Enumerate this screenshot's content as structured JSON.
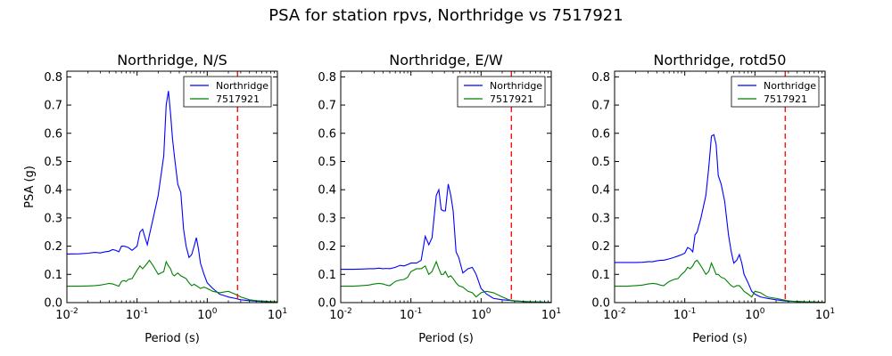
{
  "figure": {
    "title": "PSA for station rpvs, Northridge vs 7517921"
  },
  "chart_data": [
    {
      "type": "line",
      "title": "Northridge, N/S",
      "xlabel": "Period (s)",
      "ylabel": "PSA (g)",
      "xscale": "log",
      "xlim": [
        0.01,
        10
      ],
      "ylim": [
        0,
        0.82
      ],
      "xticks": [
        0.01,
        0.1,
        1,
        10
      ],
      "xtick_labels": [
        [
          "10",
          "-2"
        ],
        [
          "10",
          "-1"
        ],
        [
          "10",
          "0"
        ],
        [
          "10",
          "1"
        ]
      ],
      "yticks": [
        0,
        0.1,
        0.2,
        0.3,
        0.4,
        0.5,
        0.6,
        0.7,
        0.8
      ],
      "ytick_labels": [
        "0.0",
        "0.1",
        "0.2",
        "0.3",
        "0.4",
        "0.5",
        "0.6",
        "0.7",
        "0.8"
      ],
      "legend_position": "upper-right",
      "vline": {
        "x": 2.7,
        "color": "#ff0000",
        "style": "dashed"
      },
      "series": [
        {
          "name": "Northridge",
          "color": "#0000ff",
          "x": [
            0.01,
            0.015,
            0.02,
            0.025,
            0.03,
            0.035,
            0.04,
            0.045,
            0.05,
            0.055,
            0.06,
            0.065,
            0.07,
            0.075,
            0.085,
            0.1,
            0.11,
            0.12,
            0.13,
            0.14,
            0.15,
            0.17,
            0.2,
            0.24,
            0.26,
            0.28,
            0.3,
            0.32,
            0.34,
            0.38,
            0.42,
            0.46,
            0.5,
            0.55,
            0.6,
            0.65,
            0.7,
            0.75,
            0.8,
            0.9,
            1.0,
            1.2,
            1.5,
            2.0,
            2.5,
            3.0,
            4.0,
            5.0,
            7.5,
            10.0
          ],
          "y": [
            0.172,
            0.173,
            0.175,
            0.178,
            0.176,
            0.18,
            0.182,
            0.188,
            0.185,
            0.18,
            0.2,
            0.2,
            0.198,
            0.195,
            0.185,
            0.2,
            0.25,
            0.26,
            0.23,
            0.205,
            0.24,
            0.3,
            0.38,
            0.52,
            0.7,
            0.75,
            0.67,
            0.58,
            0.52,
            0.42,
            0.39,
            0.26,
            0.2,
            0.16,
            0.17,
            0.2,
            0.23,
            0.19,
            0.14,
            0.1,
            0.07,
            0.05,
            0.03,
            0.02,
            0.015,
            0.01,
            0.007,
            0.005,
            0.003,
            0.002
          ]
        },
        {
          "name": "7517921",
          "color": "#008000",
          "x": [
            0.01,
            0.015,
            0.02,
            0.025,
            0.03,
            0.035,
            0.04,
            0.045,
            0.05,
            0.055,
            0.06,
            0.065,
            0.07,
            0.075,
            0.085,
            0.1,
            0.11,
            0.12,
            0.13,
            0.14,
            0.15,
            0.17,
            0.2,
            0.24,
            0.26,
            0.28,
            0.3,
            0.32,
            0.34,
            0.38,
            0.42,
            0.46,
            0.5,
            0.55,
            0.6,
            0.65,
            0.7,
            0.75,
            0.8,
            0.9,
            1.0,
            1.2,
            1.5,
            2.0,
            2.5,
            3.0,
            4.0,
            5.0,
            7.5,
            10.0
          ],
          "y": [
            0.058,
            0.058,
            0.059,
            0.06,
            0.062,
            0.065,
            0.068,
            0.066,
            0.062,
            0.058,
            0.075,
            0.078,
            0.075,
            0.082,
            0.085,
            0.115,
            0.13,
            0.12,
            0.13,
            0.14,
            0.15,
            0.13,
            0.1,
            0.11,
            0.145,
            0.13,
            0.12,
            0.1,
            0.095,
            0.105,
            0.095,
            0.09,
            0.085,
            0.07,
            0.06,
            0.065,
            0.06,
            0.055,
            0.05,
            0.055,
            0.05,
            0.04,
            0.035,
            0.04,
            0.03,
            0.02,
            0.01,
            0.007,
            0.004,
            0.003
          ]
        }
      ]
    },
    {
      "type": "line",
      "title": "Northridge, E/W",
      "xlabel": "Period (s)",
      "ylabel": "",
      "xscale": "log",
      "xlim": [
        0.01,
        10
      ],
      "ylim": [
        0,
        0.82
      ],
      "xticks": [
        0.01,
        0.1,
        1,
        10
      ],
      "xtick_labels": [
        [
          "10",
          "-2"
        ],
        [
          "10",
          "-1"
        ],
        [
          "10",
          "0"
        ],
        [
          "10",
          "1"
        ]
      ],
      "yticks": [
        0,
        0.1,
        0.2,
        0.3,
        0.4,
        0.5,
        0.6,
        0.7,
        0.8
      ],
      "ytick_labels": [
        "0.0",
        "0.1",
        "0.2",
        "0.3",
        "0.4",
        "0.5",
        "0.6",
        "0.7",
        "0.8"
      ],
      "legend_position": "upper-right",
      "vline": {
        "x": 2.7,
        "color": "#ff0000",
        "style": "dashed"
      },
      "series": [
        {
          "name": "Northridge",
          "color": "#0000ff",
          "x": [
            0.01,
            0.015,
            0.02,
            0.025,
            0.03,
            0.035,
            0.04,
            0.045,
            0.05,
            0.06,
            0.07,
            0.08,
            0.09,
            0.1,
            0.12,
            0.14,
            0.16,
            0.18,
            0.2,
            0.23,
            0.25,
            0.27,
            0.29,
            0.31,
            0.34,
            0.37,
            0.4,
            0.44,
            0.48,
            0.55,
            0.65,
            0.75,
            0.85,
            1.0,
            1.2,
            1.5,
            2.0,
            2.5,
            3.0,
            4.0,
            5.0,
            7.5,
            10.0
          ],
          "y": [
            0.118,
            0.118,
            0.119,
            0.12,
            0.12,
            0.122,
            0.12,
            0.121,
            0.12,
            0.125,
            0.132,
            0.13,
            0.135,
            0.14,
            0.14,
            0.15,
            0.235,
            0.205,
            0.23,
            0.38,
            0.4,
            0.33,
            0.325,
            0.325,
            0.42,
            0.38,
            0.325,
            0.18,
            0.16,
            0.105,
            0.12,
            0.125,
            0.1,
            0.05,
            0.03,
            0.015,
            0.01,
            0.008,
            0.006,
            0.004,
            0.003,
            0.002,
            0.001
          ]
        },
        {
          "name": "7517921",
          "color": "#008000",
          "x": [
            0.01,
            0.015,
            0.02,
            0.025,
            0.03,
            0.035,
            0.04,
            0.045,
            0.05,
            0.06,
            0.07,
            0.08,
            0.09,
            0.1,
            0.12,
            0.14,
            0.16,
            0.18,
            0.2,
            0.23,
            0.25,
            0.27,
            0.29,
            0.31,
            0.34,
            0.37,
            0.4,
            0.44,
            0.48,
            0.55,
            0.65,
            0.75,
            0.85,
            1.0,
            1.2,
            1.5,
            2.0,
            2.5,
            3.0,
            4.0,
            5.0,
            7.5,
            10.0
          ],
          "y": [
            0.058,
            0.058,
            0.06,
            0.062,
            0.066,
            0.068,
            0.066,
            0.062,
            0.06,
            0.075,
            0.08,
            0.082,
            0.09,
            0.11,
            0.12,
            0.12,
            0.13,
            0.1,
            0.11,
            0.145,
            0.12,
            0.1,
            0.1,
            0.11,
            0.09,
            0.095,
            0.085,
            0.07,
            0.06,
            0.055,
            0.04,
            0.035,
            0.02,
            0.035,
            0.04,
            0.035,
            0.02,
            0.01,
            0.006,
            0.004,
            0.003,
            0.002,
            0.001
          ]
        }
      ]
    },
    {
      "type": "line",
      "title": "Northridge, rotd50",
      "xlabel": "Period (s)",
      "ylabel": "",
      "xscale": "log",
      "xlim": [
        0.01,
        10
      ],
      "ylim": [
        0,
        0.82
      ],
      "xticks": [
        0.01,
        0.1,
        1,
        10
      ],
      "xtick_labels": [
        [
          "10",
          "-2"
        ],
        [
          "10",
          "-1"
        ],
        [
          "10",
          "0"
        ],
        [
          "10",
          "1"
        ]
      ],
      "yticks": [
        0,
        0.1,
        0.2,
        0.3,
        0.4,
        0.5,
        0.6,
        0.7,
        0.8
      ],
      "ytick_labels": [
        "0.0",
        "0.1",
        "0.2",
        "0.3",
        "0.4",
        "0.5",
        "0.6",
        "0.7",
        "0.8"
      ],
      "legend_position": "upper-right",
      "vline": {
        "x": 2.7,
        "color": "#ff0000",
        "style": "dashed"
      },
      "series": [
        {
          "name": "Northridge",
          "color": "#0000ff",
          "x": [
            0.01,
            0.015,
            0.02,
            0.025,
            0.03,
            0.035,
            0.04,
            0.045,
            0.05,
            0.06,
            0.07,
            0.08,
            0.09,
            0.1,
            0.11,
            0.12,
            0.13,
            0.14,
            0.15,
            0.17,
            0.2,
            0.22,
            0.24,
            0.26,
            0.28,
            0.3,
            0.33,
            0.37,
            0.42,
            0.46,
            0.5,
            0.55,
            0.6,
            0.65,
            0.7,
            0.8,
            0.9,
            1.0,
            1.2,
            1.5,
            2.0,
            2.5,
            3.0,
            4.0,
            5.0,
            7.5,
            10.0
          ],
          "y": [
            0.142,
            0.142,
            0.142,
            0.143,
            0.145,
            0.145,
            0.148,
            0.15,
            0.15,
            0.155,
            0.16,
            0.165,
            0.17,
            0.175,
            0.195,
            0.19,
            0.18,
            0.24,
            0.25,
            0.3,
            0.38,
            0.48,
            0.59,
            0.595,
            0.56,
            0.45,
            0.42,
            0.36,
            0.24,
            0.18,
            0.14,
            0.15,
            0.17,
            0.14,
            0.1,
            0.07,
            0.04,
            0.03,
            0.02,
            0.015,
            0.01,
            0.007,
            0.005,
            0.004,
            0.003,
            0.002,
            0.001
          ]
        },
        {
          "name": "7517921",
          "color": "#008000",
          "x": [
            0.01,
            0.015,
            0.02,
            0.025,
            0.03,
            0.035,
            0.04,
            0.045,
            0.05,
            0.06,
            0.07,
            0.08,
            0.09,
            0.1,
            0.11,
            0.12,
            0.13,
            0.14,
            0.15,
            0.17,
            0.2,
            0.22,
            0.24,
            0.26,
            0.28,
            0.3,
            0.33,
            0.37,
            0.42,
            0.46,
            0.5,
            0.55,
            0.6,
            0.65,
            0.7,
            0.8,
            0.9,
            1.0,
            1.2,
            1.5,
            2.0,
            2.5,
            3.0,
            4.0,
            5.0,
            7.5,
            10.0
          ],
          "y": [
            0.058,
            0.058,
            0.06,
            0.062,
            0.066,
            0.068,
            0.066,
            0.062,
            0.06,
            0.075,
            0.082,
            0.085,
            0.1,
            0.11,
            0.125,
            0.12,
            0.13,
            0.145,
            0.15,
            0.13,
            0.1,
            0.11,
            0.14,
            0.12,
            0.1,
            0.1,
            0.09,
            0.085,
            0.07,
            0.06,
            0.055,
            0.06,
            0.06,
            0.05,
            0.04,
            0.03,
            0.02,
            0.04,
            0.035,
            0.02,
            0.015,
            0.01,
            0.006,
            0.004,
            0.003,
            0.002,
            0.001
          ]
        }
      ]
    }
  ]
}
